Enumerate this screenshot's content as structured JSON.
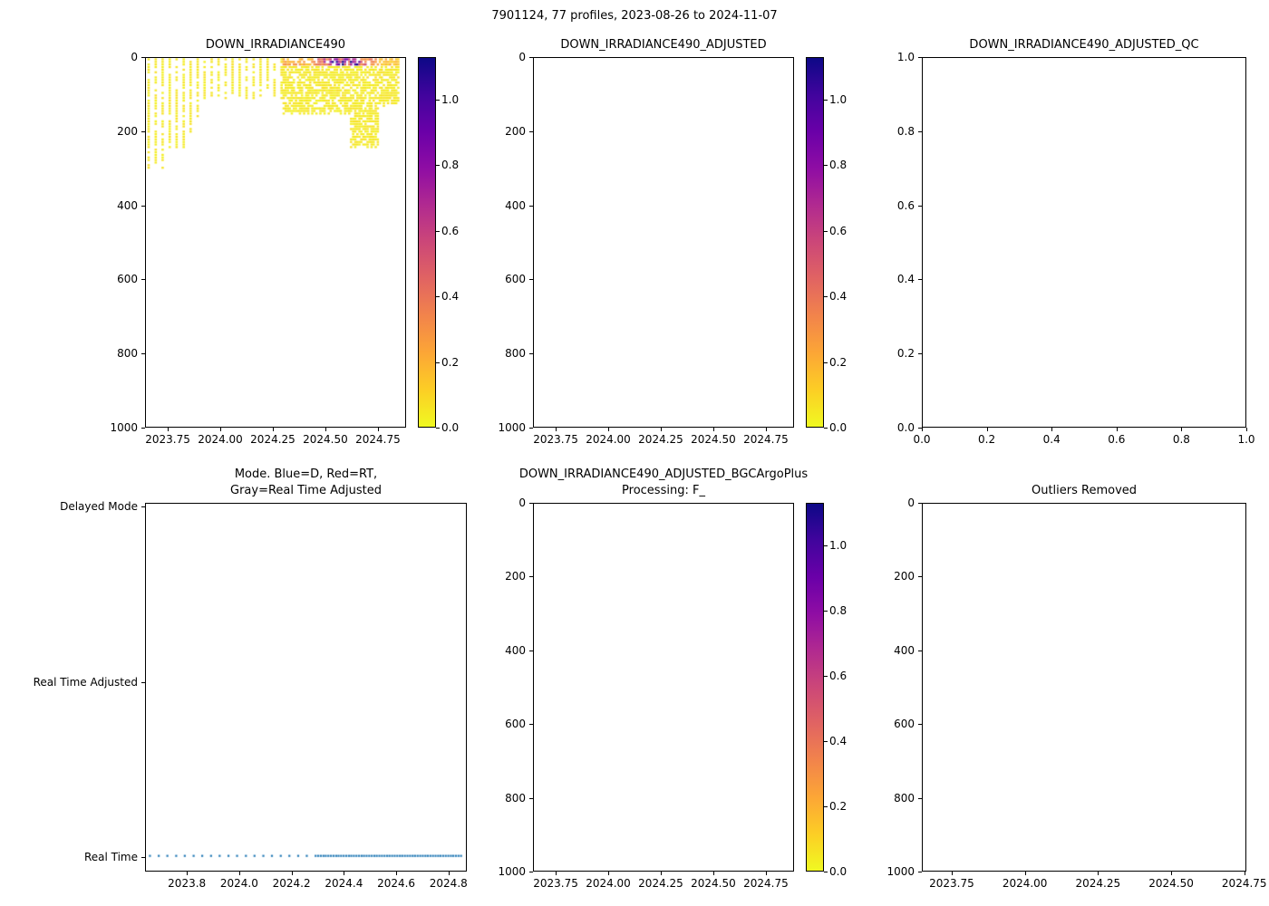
{
  "figure_title": "7901124, 77 profiles, 2023-08-26 to 2024-11-07",
  "colors": {
    "plasma_stops": [
      "#0d0887",
      "#41049d",
      "#6a00a8",
      "#8f0da4",
      "#b12a90",
      "#cc4778",
      "#e16462",
      "#f2844b",
      "#fca636",
      "#fcce25",
      "#f0f921"
    ],
    "mode_dot_color": "#1f77b4",
    "axis_color": "#000000",
    "background": "#ffffff"
  },
  "chart_data": {
    "type": "heatmap",
    "title": "7901124, 77 profiles, 2023-08-26 to 2024-11-07",
    "float_id": "7901124",
    "profile_count": 77,
    "date_range": "2023-08-26 to 2024-11-07",
    "panels": [
      {
        "title_lines": [
          "DOWN_IRRADIANCE490"
        ],
        "type": "profile-heatmap",
        "xlim": [
          2023.642,
          2024.884
        ],
        "xticks": [
          2023.75,
          2024.0,
          2024.25,
          2024.5,
          2024.75
        ],
        "xtick_labels": [
          "2023.75",
          "2024.00",
          "2024.25",
          "2024.50",
          "2024.75"
        ],
        "ylim": [
          0,
          1000
        ],
        "y_inverted": true,
        "yticks": [
          0,
          200,
          400,
          600,
          800,
          1000
        ],
        "ytick_labels": [
          "0",
          "200",
          "400",
          "600",
          "800",
          "1000"
        ],
        "colorbar": {
          "vmax": 1.13,
          "ticks": [
            0,
            0.2,
            0.4,
            0.6,
            0.8,
            1.0
          ],
          "tick_labels": [
            "0.0",
            "0.2",
            "0.4",
            "0.6",
            "0.8",
            "1.0"
          ]
        }
      },
      {
        "title_lines": [
          "DOWN_IRRADIANCE490_ADJUSTED"
        ],
        "type": "empty",
        "xlim": [
          2023.642,
          2024.884
        ],
        "xticks": [
          2023.75,
          2024.0,
          2024.25,
          2024.5,
          2024.75
        ],
        "xtick_labels": [
          "2023.75",
          "2024.00",
          "2024.25",
          "2024.50",
          "2024.75"
        ],
        "ylim": [
          0,
          1000
        ],
        "y_inverted": true,
        "yticks": [
          0,
          200,
          400,
          600,
          800,
          1000
        ],
        "ytick_labels": [
          "0",
          "200",
          "400",
          "600",
          "800",
          "1000"
        ],
        "colorbar": {
          "vmax": 1.13,
          "ticks": [
            0,
            0.2,
            0.4,
            0.6,
            0.8,
            1.0
          ],
          "tick_labels": [
            "0.0",
            "0.2",
            "0.4",
            "0.6",
            "0.8",
            "1.0"
          ]
        }
      },
      {
        "title_lines": [
          "DOWN_IRRADIANCE490_ADJUSTED_QC"
        ],
        "type": "empty",
        "xlim": [
          0,
          1
        ],
        "xticks": [
          0,
          0.2,
          0.4,
          0.6,
          0.8,
          1.0
        ],
        "xtick_labels": [
          "0.0",
          "0.2",
          "0.4",
          "0.6",
          "0.8",
          "1.0"
        ],
        "ylim": [
          0,
          1
        ],
        "y_inverted": false,
        "yticks": [
          0,
          0.2,
          0.4,
          0.6,
          0.8,
          1.0
        ],
        "ytick_labels": [
          "0.0",
          "0.2",
          "0.4",
          "0.6",
          "0.8",
          "1.0"
        ]
      },
      {
        "title_lines": [
          "Mode. Blue=D, Red=RT,",
          "Gray=Real Time Adjusted"
        ],
        "type": "mode-dots",
        "xlim": [
          2023.64,
          2024.87
        ],
        "xticks": [
          2023.8,
          2024.0,
          2024.2,
          2024.4,
          2024.6,
          2024.8
        ],
        "xtick_labels": [
          "2023.8",
          "2024.0",
          "2024.2",
          "2024.4",
          "2024.6",
          "2024.8"
        ],
        "ylim": [
          -0.08,
          2.02
        ],
        "y_inverted": false,
        "yticks": [
          2,
          1,
          0
        ],
        "ytick_labels": [
          "Delayed Mode",
          "Real Time Adjusted",
          "Real Time"
        ],
        "dot_value": 0,
        "mode_of_all_profiles": "Real Time"
      },
      {
        "title_lines": [
          "DOWN_IRRADIANCE490_ADJUSTED_BGCArgoPlus",
          "Processing: F_"
        ],
        "type": "empty",
        "xlim": [
          2023.642,
          2024.884
        ],
        "xticks": [
          2023.75,
          2024.0,
          2024.25,
          2024.5,
          2024.75
        ],
        "xtick_labels": [
          "2023.75",
          "2024.00",
          "2024.25",
          "2024.50",
          "2024.75"
        ],
        "ylim": [
          0,
          1000
        ],
        "y_inverted": true,
        "yticks": [
          0,
          200,
          400,
          600,
          800,
          1000
        ],
        "ytick_labels": [
          "0",
          "200",
          "400",
          "600",
          "800",
          "1000"
        ],
        "colorbar": {
          "vmax": 1.13,
          "ticks": [
            0,
            0.2,
            0.4,
            0.6,
            0.8,
            1.0
          ],
          "tick_labels": [
            "0.0",
            "0.2",
            "0.4",
            "0.6",
            "0.8",
            "1.0"
          ]
        }
      },
      {
        "title_lines": [
          "Outliers Removed"
        ],
        "type": "empty",
        "xlim": [
          2023.648,
          2024.757
        ],
        "xticks": [
          2023.75,
          2024.0,
          2024.25,
          2024.5,
          2024.75
        ],
        "xtick_labels": [
          "2023.75",
          "2024.00",
          "2024.25",
          "2024.50",
          "2024.75"
        ],
        "ylim": [
          0,
          1000
        ],
        "y_inverted": true,
        "yticks": [
          0,
          200,
          400,
          600,
          800,
          1000
        ],
        "ytick_labels": [
          "0",
          "200",
          "400",
          "600",
          "800",
          "1000"
        ]
      }
    ],
    "profiles": {
      "count": 77,
      "times": [
        2023.655,
        2023.689,
        2023.722,
        2023.756,
        2023.789,
        2023.823,
        2023.856,
        2023.89,
        2023.923,
        2023.957,
        2023.99,
        2024.024,
        2024.057,
        2024.091,
        2024.124,
        2024.158,
        2024.191,
        2024.225,
        2024.258,
        2024.292,
        2024.302,
        2024.312,
        2024.322,
        2024.331,
        2024.341,
        2024.351,
        2024.361,
        2024.371,
        2024.38,
        2024.39,
        2024.4,
        2024.41,
        2024.42,
        2024.429,
        2024.439,
        2024.449,
        2024.459,
        2024.469,
        2024.478,
        2024.488,
        2024.498,
        2024.508,
        2024.518,
        2024.527,
        2024.537,
        2024.547,
        2024.557,
        2024.567,
        2024.576,
        2024.586,
        2024.596,
        2024.606,
        2024.616,
        2024.625,
        2024.635,
        2024.645,
        2024.655,
        2024.665,
        2024.674,
        2024.684,
        2024.694,
        2024.704,
        2024.714,
        2024.723,
        2024.733,
        2024.743,
        2024.753,
        2024.763,
        2024.772,
        2024.782,
        2024.792,
        2024.802,
        2024.812,
        2024.821,
        2024.831,
        2024.841,
        2024.851
      ],
      "max_depths": [
        300,
        295,
        300,
        255,
        250,
        245,
        200,
        190,
        110,
        105,
        100,
        110,
        95,
        100,
        108,
        112,
        100,
        96,
        104,
        110,
        150,
        145,
        152,
        148,
        150,
        144,
        151,
        147,
        150,
        146,
        152,
        148,
        150,
        145,
        151,
        148,
        150,
        146,
        152,
        147,
        150,
        145,
        151,
        148,
        150,
        146,
        152,
        148,
        150,
        145,
        151,
        147,
        150,
        240,
        235,
        242,
        238,
        240,
        234,
        241,
        237,
        240,
        236,
        242,
        238,
        240,
        235,
        125,
        120,
        128,
        122,
        126,
        120,
        127,
        123,
        125,
        120
      ],
      "surface_values": [
        0.05,
        0.05,
        0.05,
        0.05,
        0.05,
        0.05,
        0.05,
        0.05,
        0.05,
        0.05,
        0.05,
        0.05,
        0.05,
        0.05,
        0.05,
        0.05,
        0.05,
        0.05,
        0.05,
        0.05,
        0.22,
        0.25,
        0.2,
        0.28,
        0.24,
        0.3,
        0.26,
        0.22,
        0.28,
        0.25,
        0.3,
        0.24,
        0.27,
        0.22,
        0.26,
        0.4,
        0.5,
        0.45,
        0.55,
        0.5,
        0.6,
        0.45,
        0.5,
        0.7,
        0.9,
        0.6,
        1.1,
        0.8,
        0.65,
        1.0,
        0.75,
        0.9,
        0.6,
        1.05,
        0.7,
        0.85,
        0.95,
        0.8,
        0.4,
        0.35,
        0.45,
        0.3,
        0.4,
        0.35,
        0.3,
        0.38,
        0.2,
        0.18,
        0.22,
        0.16,
        0.2,
        0.15,
        0.18,
        0.2,
        0.16,
        0.18,
        0.15
      ]
    }
  }
}
